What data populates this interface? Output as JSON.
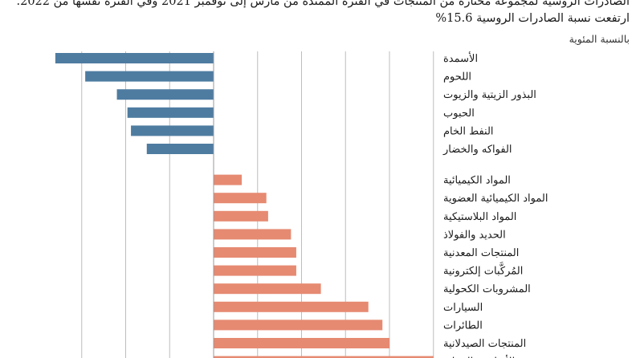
{
  "header": {
    "title_line1": "الصادرات الروسية لمجموعة مختارة من المنتجات في الفترة الممتدة من مارس إلى نوفمبر 2021 وفي الفترة نفسها من 2022.",
    "title_line2": "ارتفعت نسبة الصادرات الروسية 15.6%",
    "unit_label": "بالنسبة المئوية"
  },
  "colors": {
    "negative": "#4e7ca1",
    "positive": "#e68a72",
    "gridline": "#bdbdbd",
    "zero_line": "#9a9a9a"
  },
  "chart_data": {
    "type": "bar",
    "orientation": "horizontal",
    "ylabel": "بالنسبة المئوية",
    "xlim": [
      -90,
      125
    ],
    "grid": true,
    "series": [
      {
        "color": "negative",
        "categories": [
          "الأسمدة",
          "اللحوم",
          "البذور الزيتية والزيوت",
          "الحبوب",
          "النفط الخام",
          "الفواكه والخضار"
        ],
        "values": [
          -90,
          -73,
          -55,
          -49,
          -47,
          -38
        ]
      },
      {
        "color": "positive",
        "categories": [
          "المواد الكيميائية",
          "المواد الكيميائية العضوية",
          "المواد البلاستيكية",
          "الحديد والفولاذ",
          "المنتجات المعدنية",
          "المُركَّبات إلكترونية",
          "المشروبات الكحولية",
          "السيارات",
          "الطائرات",
          "المنتجات الصيدلانية",
          "الأسلحة والذخائر"
        ],
        "values": [
          16,
          30,
          31,
          44,
          47,
          47,
          61,
          88,
          96,
          100,
          125
        ]
      }
    ]
  }
}
